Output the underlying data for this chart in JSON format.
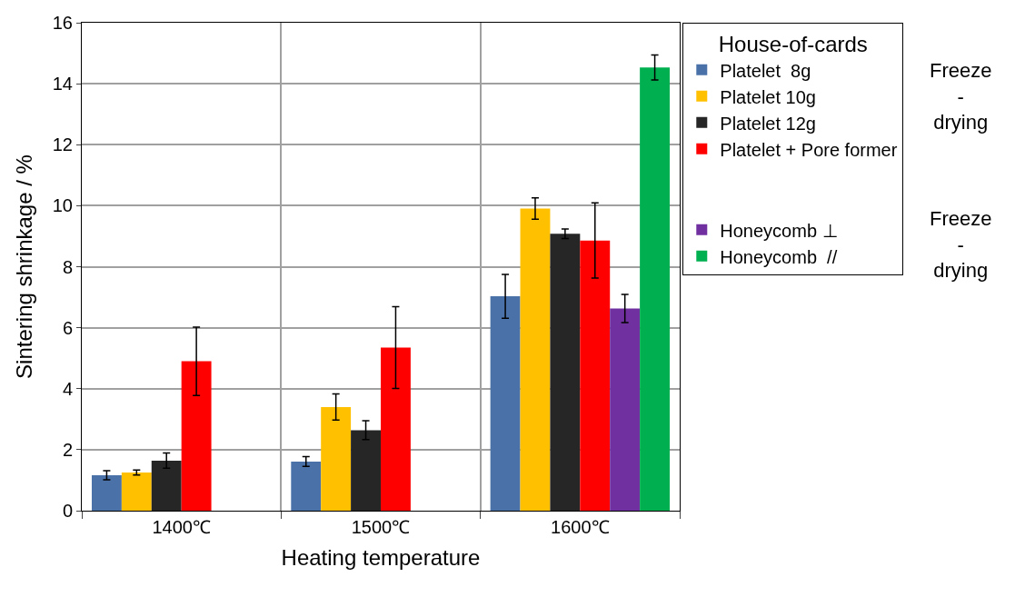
{
  "chart_data": {
    "type": "bar",
    "xlabel": "Heating temperature",
    "ylabel": "Sintering shrinkage / %",
    "categories": [
      "1400℃",
      "1500℃",
      "1600℃"
    ],
    "series": [
      {
        "name": "Platelet  8g",
        "color": "#4a72a8",
        "values": [
          1.16,
          1.61,
          7.03
        ],
        "errors": [
          0.15,
          0.16,
          0.72
        ]
      },
      {
        "name": "Platelet 10g",
        "color": "#ffc000",
        "values": [
          1.25,
          3.4,
          9.91
        ],
        "errors": [
          0.08,
          0.43,
          0.35
        ]
      },
      {
        "name": "Platelet 12g",
        "color": "#262626",
        "values": [
          1.64,
          2.64,
          9.08
        ],
        "errors": [
          0.25,
          0.31,
          0.16
        ]
      },
      {
        "name": "Platelet + Pore former",
        "color": "#ff0000",
        "values": [
          4.9,
          5.35,
          8.86
        ],
        "errors": [
          1.12,
          1.34,
          1.23
        ]
      },
      {
        "name": "Honeycomb ⊥",
        "color": "#7030a0",
        "values": [
          null,
          null,
          6.63
        ],
        "errors": [
          null,
          null,
          0.46
        ]
      },
      {
        "name": "Honeycomb  //",
        "color": "#00b050",
        "values": [
          null,
          null,
          14.53
        ],
        "errors": [
          null,
          null,
          0.41
        ]
      }
    ],
    "ylim": [
      0,
      16
    ],
    "yticks": [
      0,
      2,
      4,
      6,
      8,
      10,
      12,
      14,
      16
    ],
    "grid": true,
    "legend": "right",
    "legend_title": "House-of-cards",
    "annotations": [
      "Freeze\n-\ndrying",
      "Freeze\n-\ndrying"
    ]
  }
}
